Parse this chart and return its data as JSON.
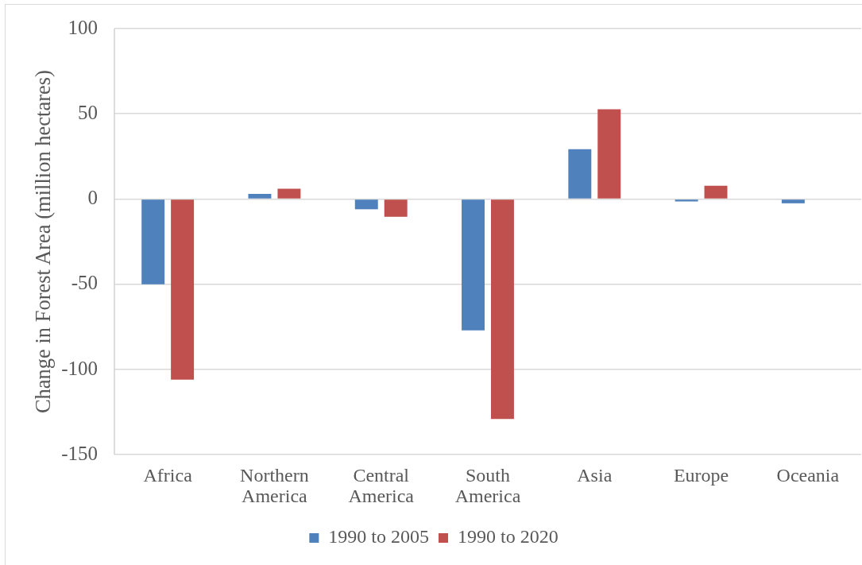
{
  "chart_data": {
    "type": "bar",
    "ylabel": "Change in Forest Area (million hectares)",
    "categories": [
      "Africa",
      "Northern America",
      "Central America",
      "South America",
      "Asia",
      "Europe",
      "Oceania"
    ],
    "series": [
      {
        "name": "1990 to 2005",
        "color": "#4f81bd",
        "values": [
          -50,
          3,
          -6,
          -77,
          29.3,
          -1.4,
          -2.5
        ]
      },
      {
        "name": "1990 to 2020",
        "color": "#c0504d",
        "values": [
          -106,
          6,
          -10.4,
          -129,
          52.7,
          7.8,
          null
        ]
      }
    ],
    "ylim": [
      -150,
      100
    ],
    "yticks": [
      -150,
      -100,
      -50,
      0,
      50,
      100
    ],
    "grid": "y",
    "legend": "bottom"
  }
}
